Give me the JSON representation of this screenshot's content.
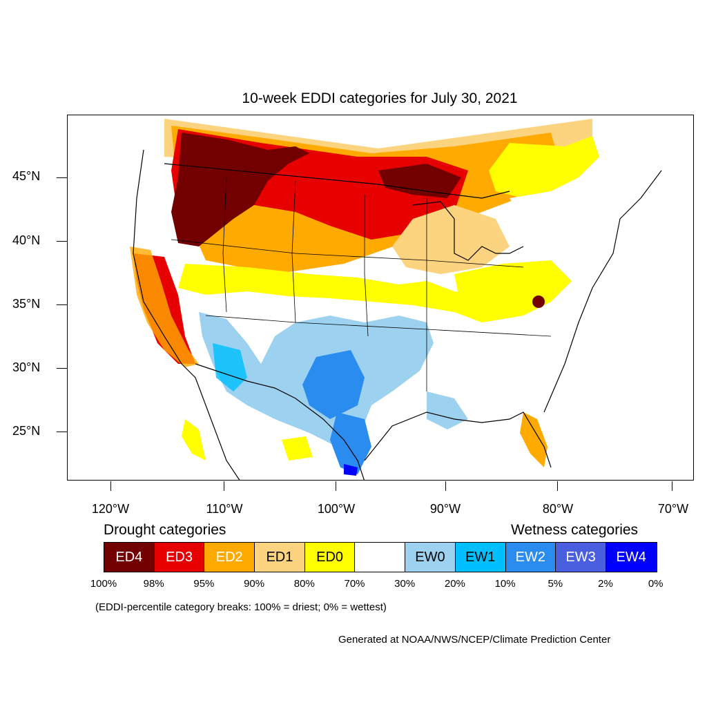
{
  "title": "10-week EDDI categories for July 30, 2021",
  "map": {
    "latitudes": [
      "45°N",
      "40°N",
      "35°N",
      "30°N",
      "25°N"
    ],
    "longitudes": [
      "120°W",
      "110°W",
      "100°W",
      "90°W",
      "80°W",
      "70°W"
    ]
  },
  "legend": {
    "drought_heading": "Drought categories",
    "wetness_heading": "Wetness categories",
    "categories": [
      {
        "label": "ED4",
        "color": "#730000",
        "text_color": "#ffffff"
      },
      {
        "label": "ED3",
        "color": "#e60000",
        "text_color": "#ffffff"
      },
      {
        "label": "ED2",
        "color": "#ffaa00",
        "text_color": "#ffffff"
      },
      {
        "label": "ED1",
        "color": "#fcd37f",
        "text_color": "#000000"
      },
      {
        "label": "ED0",
        "color": "#ffff00",
        "text_color": "#000000"
      },
      {
        "label": "",
        "color": "#ffffff",
        "text_color": "#000000"
      },
      {
        "label": "EW0",
        "color": "#9cd1f0",
        "text_color": "#000000"
      },
      {
        "label": "EW1",
        "color": "#00bfff",
        "text_color": "#000000"
      },
      {
        "label": "EW2",
        "color": "#2b8cf0",
        "text_color": "#ffffff"
      },
      {
        "label": "EW3",
        "color": "#4a5fe0",
        "text_color": "#ffffff"
      },
      {
        "label": "EW4",
        "color": "#0000ff",
        "text_color": "#ffffff"
      }
    ],
    "percent_breaks": [
      "100%",
      "98%",
      "95%",
      "90%",
      "80%",
      "70%",
      "30%",
      "20%",
      "10%",
      "5%",
      "2%",
      "0%"
    ]
  },
  "note": "(EDDI-percentile category breaks: 100% = driest; 0% = wettest)",
  "credit": "Generated at NOAA/NWS/NCEP/Climate Prediction Center"
}
